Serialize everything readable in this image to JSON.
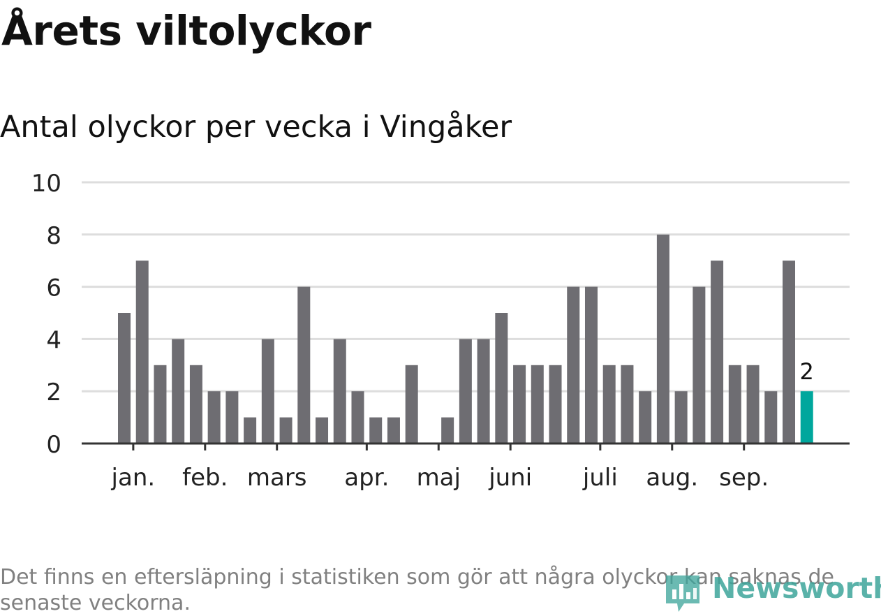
{
  "title": "Årets viltolyckor",
  "subtitle": "Antal olyckor per vecka i Vingåker",
  "footnote": "Det finns en eftersläpning i statistiken som gör att några olyckor kan saknas de senaste veckorna.",
  "logo": "Newsworthy",
  "colors": {
    "bar": "#6e6d72",
    "highlight": "#00a79d",
    "grid": "#dddddd",
    "axis": "#333333",
    "logo": "#3ea59b"
  },
  "chart_data": {
    "type": "bar",
    "title": "Antal olyckor per vecka i Vingåker",
    "xlabel": "",
    "ylabel": "",
    "ylim": [
      0,
      10
    ],
    "yticks": [
      0,
      2,
      4,
      6,
      8,
      10
    ],
    "grid": true,
    "values": [
      5,
      7,
      3,
      4,
      3,
      2,
      2,
      1,
      4,
      1,
      6,
      1,
      4,
      2,
      1,
      1,
      3,
      0,
      1,
      4,
      4,
      5,
      3,
      3,
      3,
      6,
      6,
      3,
      3,
      2,
      8,
      2,
      6,
      7,
      3,
      3,
      2,
      7,
      2
    ],
    "highlight_index": 38,
    "highlight_label": "2",
    "month_labels": [
      {
        "label": "jan.",
        "week_index": 0.5
      },
      {
        "label": "feb.",
        "week_index": 4.5
      },
      {
        "label": "mars",
        "week_index": 8.5
      },
      {
        "label": "apr.",
        "week_index": 13.5
      },
      {
        "label": "maj",
        "week_index": 17.5
      },
      {
        "label": "juni",
        "week_index": 21.5
      },
      {
        "label": "juli",
        "week_index": 26.5
      },
      {
        "label": "aug.",
        "week_index": 30.5
      },
      {
        "label": "sep.",
        "week_index": 34.5
      }
    ]
  }
}
